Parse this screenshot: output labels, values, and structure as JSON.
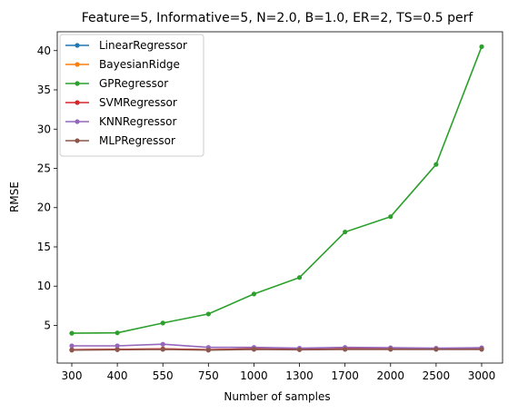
{
  "chart_data": {
    "type": "line",
    "title": "Feature=5, Informative=5, N=2.0, B=1.0, ER=2, TS=0.5 perf",
    "xlabel": "Number of samples",
    "ylabel": "RMSE",
    "categories": [
      "300",
      "400",
      "550",
      "750",
      "1000",
      "1300",
      "1700",
      "2000",
      "2500",
      "3000"
    ],
    "ylim": [
      0.2,
      42.4
    ],
    "yticks": [
      5,
      10,
      15,
      20,
      25,
      30,
      35,
      40
    ],
    "grid": false,
    "legend_position": "top-left",
    "series": [
      {
        "name": "LinearRegressor",
        "color": "#1f77b4",
        "values": [
          1.9,
          1.95,
          2.0,
          1.9,
          2.0,
          1.95,
          2.0,
          2.0,
          2.0,
          2.0
        ]
      },
      {
        "name": "BayesianRidge",
        "color": "#ff7f0e",
        "values": [
          1.9,
          1.95,
          2.0,
          1.9,
          2.0,
          1.95,
          2.0,
          2.0,
          2.0,
          2.0
        ]
      },
      {
        "name": "GPRegressor",
        "color": "#2ca02c",
        "values": [
          4.0,
          4.05,
          5.3,
          6.45,
          9.0,
          11.1,
          16.9,
          18.85,
          25.5,
          40.5
        ]
      },
      {
        "name": "SVMRegressor",
        "color": "#d62728",
        "values": [
          1.9,
          1.95,
          2.0,
          1.9,
          2.0,
          1.95,
          2.0,
          2.0,
          2.0,
          2.0
        ]
      },
      {
        "name": "KNNRegressor",
        "color": "#9467bd",
        "values": [
          2.4,
          2.4,
          2.6,
          2.2,
          2.2,
          2.1,
          2.2,
          2.15,
          2.1,
          2.15
        ]
      },
      {
        "name": "MLPRegressor",
        "color": "#8c564b",
        "values": [
          1.85,
          1.9,
          1.95,
          1.85,
          1.95,
          1.9,
          1.95,
          1.95,
          1.95,
          1.95
        ]
      }
    ]
  }
}
